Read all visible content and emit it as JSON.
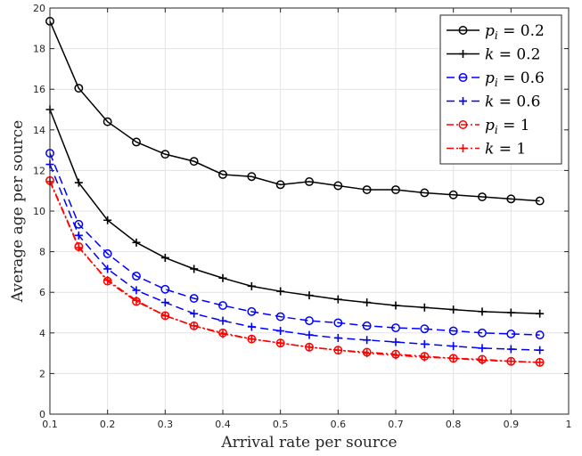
{
  "chart_data": {
    "type": "line",
    "title": "",
    "xlabel": "Arrival rate per source",
    "ylabel": "Average age per source",
    "xlim": [
      0.1,
      1
    ],
    "ylim": [
      0,
      20
    ],
    "xticks": [
      0.1,
      0.2,
      0.3,
      0.4,
      0.5,
      0.6,
      0.7,
      0.8,
      0.9,
      1
    ],
    "xtick_labels": [
      "0.1",
      "0.2",
      "0.3",
      "0.4",
      "0.5",
      "0.6",
      "0.7",
      "0.8",
      "0.9",
      "1"
    ],
    "yticks": [
      0,
      2,
      4,
      6,
      8,
      10,
      12,
      14,
      16,
      18,
      20
    ],
    "ytick_labels": [
      "0",
      "2",
      "4",
      "6",
      "8",
      "10",
      "12",
      "14",
      "16",
      "18",
      "20"
    ],
    "grid": true,
    "legend_position": "top-right",
    "x": [
      0.1,
      0.15,
      0.2,
      0.25,
      0.3,
      0.35,
      0.4,
      0.45,
      0.5,
      0.55,
      0.6,
      0.65,
      0.7,
      0.75,
      0.8,
      0.85,
      0.9,
      0.95
    ],
    "series": [
      {
        "legend_var": "p",
        "legend_sub": "i",
        "legend_rest": " = 0.2",
        "color": "#000000",
        "dash": "",
        "marker": "circle",
        "values": [
          19.35,
          16.05,
          14.4,
          13.4,
          12.8,
          12.45,
          11.8,
          11.7,
          11.3,
          11.45,
          11.25,
          11.05,
          11.05,
          10.9,
          10.8,
          10.7,
          10.6,
          10.5
        ]
      },
      {
        "legend_var": "k",
        "legend_sub": "",
        "legend_rest": " = 0.2",
        "color": "#000000",
        "dash": "",
        "marker": "plus",
        "values": [
          15.0,
          11.4,
          9.55,
          8.45,
          7.7,
          7.15,
          6.7,
          6.3,
          6.05,
          5.85,
          5.65,
          5.5,
          5.35,
          5.25,
          5.15,
          5.05,
          5.0,
          4.95
        ]
      },
      {
        "legend_var": "p",
        "legend_sub": "i",
        "legend_rest": " = 0.6",
        "color": "#0000ff",
        "dash": "9,5",
        "marker": "circle",
        "values": [
          12.85,
          9.35,
          7.9,
          6.8,
          6.15,
          5.7,
          5.35,
          5.05,
          4.8,
          4.6,
          4.5,
          4.35,
          4.25,
          4.2,
          4.1,
          4.0,
          3.95,
          3.9
        ]
      },
      {
        "legend_var": "k",
        "legend_sub": "",
        "legend_rest": " = 0.6",
        "color": "#0000ff",
        "dash": "9,5",
        "marker": "plus",
        "values": [
          12.3,
          8.8,
          7.15,
          6.1,
          5.5,
          4.95,
          4.6,
          4.3,
          4.1,
          3.9,
          3.75,
          3.65,
          3.55,
          3.45,
          3.35,
          3.25,
          3.2,
          3.15
        ]
      },
      {
        "legend_var": "p",
        "legend_sub": "i",
        "legend_rest": " = 1",
        "color": "#ff0000",
        "dash": "8,3,2,3",
        "marker": "circle",
        "values": [
          11.5,
          8.25,
          6.55,
          5.55,
          4.85,
          4.35,
          4.0,
          3.7,
          3.5,
          3.3,
          3.15,
          3.05,
          2.95,
          2.85,
          2.75,
          2.7,
          2.6,
          2.55
        ]
      },
      {
        "legend_var": "k",
        "legend_sub": "",
        "legend_rest": " = 1",
        "color": "#ff0000",
        "dash": "8,3,2,3",
        "marker": "plus",
        "values": [
          11.45,
          8.2,
          6.6,
          5.6,
          4.85,
          4.35,
          3.95,
          3.7,
          3.5,
          3.3,
          3.15,
          3.0,
          2.9,
          2.8,
          2.75,
          2.65,
          2.6,
          2.55
        ]
      }
    ]
  }
}
